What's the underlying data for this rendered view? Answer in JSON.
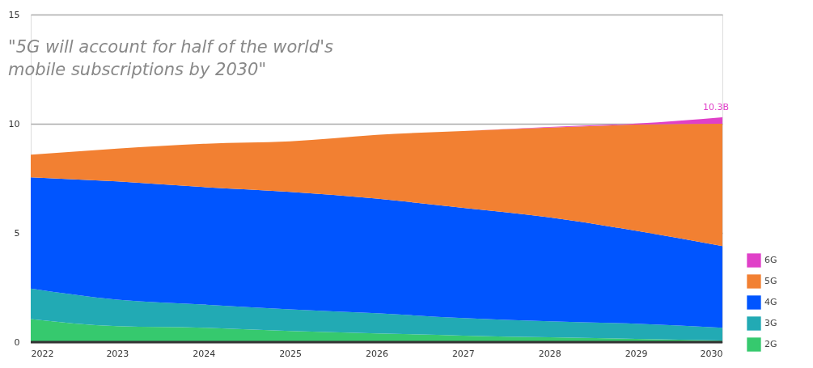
{
  "chart_data": {
    "type": "area",
    "title": "\"5G will account for half of the world's mobile subscriptions by 2030\"",
    "x": [
      2022,
      2023,
      2024,
      2025,
      2026,
      2027,
      2028,
      2029,
      2030
    ],
    "stacked": true,
    "series": [
      {
        "name": "2G",
        "color": "#36c96e",
        "values": [
          1.06,
          0.73,
          0.66,
          0.51,
          0.4,
          0.3,
          0.22,
          0.15,
          0.07
        ]
      },
      {
        "name": "3G",
        "color": "#22aab4",
        "values": [
          1.39,
          1.21,
          1.06,
          0.99,
          0.92,
          0.8,
          0.73,
          0.69,
          0.59
        ]
      },
      {
        "name": "4G",
        "color": "#0055ff",
        "values": [
          5.1,
          5.42,
          5.38,
          5.38,
          5.25,
          5.05,
          4.76,
          4.26,
          3.74
        ]
      },
      {
        "name": "5G",
        "color": "#f28032",
        "values": [
          1.03,
          1.5,
          1.98,
          2.31,
          2.92,
          3.52,
          4.11,
          4.86,
          5.6
        ]
      },
      {
        "name": "6G",
        "color": "#e040c8",
        "values": [
          0,
          0,
          0,
          0,
          0,
          0,
          0.03,
          0.05,
          0.3
        ]
      }
    ],
    "annotations": [
      {
        "text": "10.3B",
        "x": 2030,
        "y": 10.3
      }
    ],
    "xlim": [
      2022,
      2030
    ],
    "xticks": [
      2022,
      2023,
      2024,
      2025,
      2026,
      2027,
      2028,
      2029,
      2030
    ],
    "ylim": [
      0,
      15
    ],
    "yticks": [
      0,
      5,
      10,
      15
    ],
    "grid": "y",
    "legend": "bottom right"
  }
}
